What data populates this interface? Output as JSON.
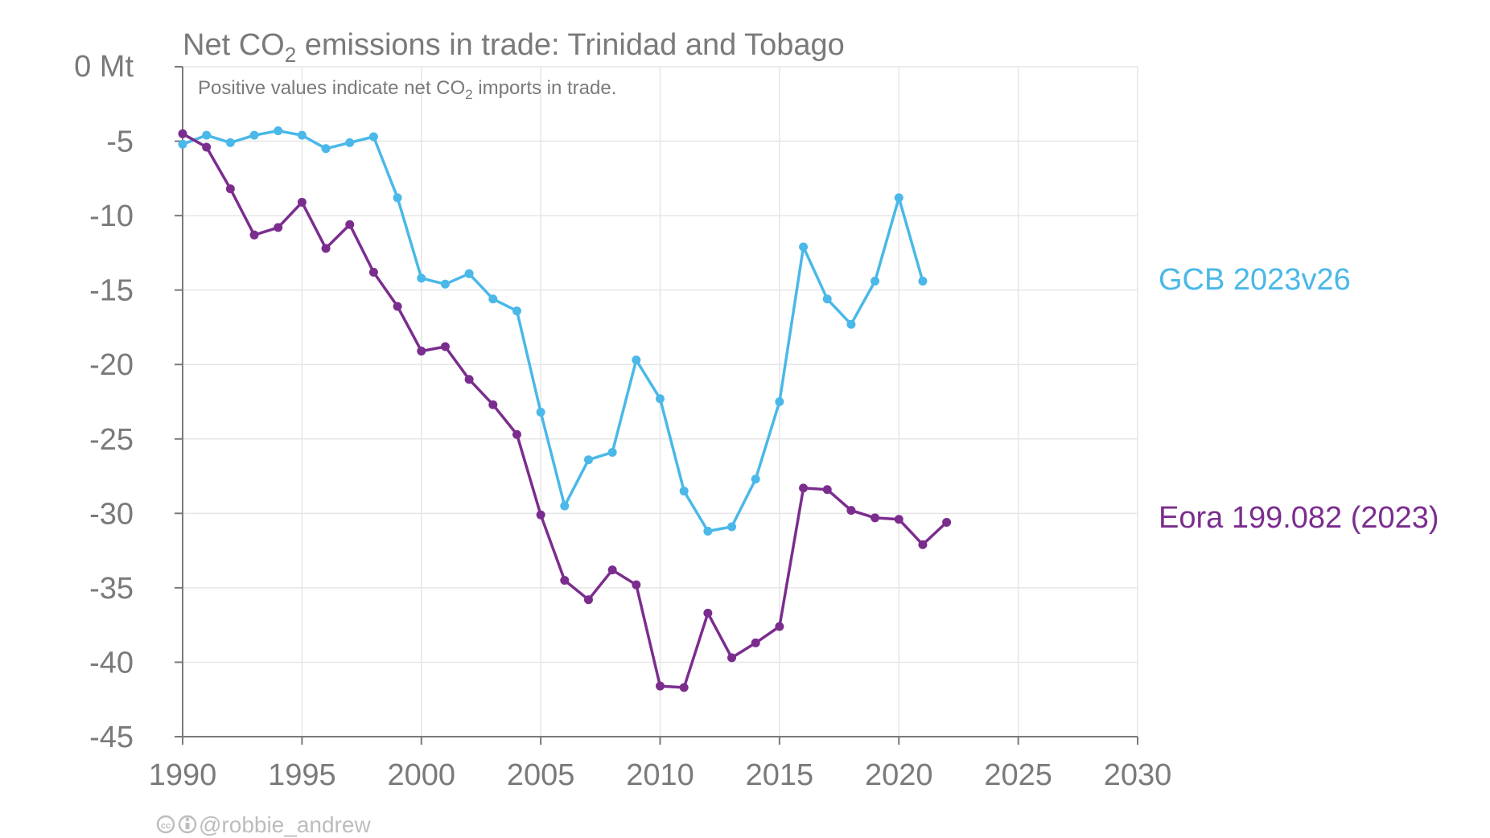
{
  "chart_data": {
    "type": "line",
    "title_parts": [
      "Net CO",
      "2",
      " emissions in trade: Trinidad and Tobago"
    ],
    "subtitle_parts": [
      "Positive values indicate net CO",
      "2",
      " imports in trade."
    ],
    "y_unit_label": "0 Mt",
    "y_tick_labels": [
      "-5",
      "-10",
      "-15",
      "-20",
      "-25",
      "-30",
      "-35",
      "-40",
      "-45"
    ],
    "x_tick_labels": [
      "1990",
      "1995",
      "2000",
      "2005",
      "2010",
      "2015",
      "2020",
      "2025",
      "2030"
    ],
    "xlim": [
      1990,
      2030
    ],
    "ylim": [
      -45,
      0
    ],
    "grid": true,
    "series": [
      {
        "name": "GCB 2023v26",
        "color": "#4ab8e8",
        "x": [
          1990,
          1991,
          1992,
          1993,
          1994,
          1995,
          1996,
          1997,
          1998,
          1999,
          2000,
          2001,
          2002,
          2003,
          2004,
          2005,
          2006,
          2007,
          2008,
          2009,
          2010,
          2011,
          2012,
          2013,
          2014,
          2015,
          2016,
          2017,
          2018,
          2019,
          2020,
          2021
        ],
        "values": [
          -5.2,
          -4.6,
          -5.1,
          -4.6,
          -4.3,
          -4.6,
          -5.5,
          -5.1,
          -4.7,
          -8.8,
          -14.2,
          -14.6,
          -13.9,
          -15.6,
          -16.4,
          -23.2,
          -29.5,
          -26.4,
          -25.9,
          -19.7,
          -22.3,
          -28.5,
          -31.2,
          -30.9,
          -27.7,
          -22.5,
          -12.1,
          -15.6,
          -17.3,
          -14.4,
          -8.8,
          -14.4
        ]
      },
      {
        "name": "Eora 199.082 (2023)",
        "color": "#7b2d8e",
        "x": [
          1990,
          1991,
          1992,
          1993,
          1994,
          1995,
          1996,
          1997,
          1998,
          1999,
          2000,
          2001,
          2002,
          2003,
          2004,
          2005,
          2006,
          2007,
          2008,
          2009,
          2010,
          2011,
          2012,
          2013,
          2014,
          2015,
          2016,
          2017,
          2018,
          2019,
          2020,
          2021,
          2022
        ],
        "values": [
          -4.5,
          -5.4,
          -8.2,
          -11.3,
          -10.8,
          -9.1,
          -12.2,
          -10.6,
          -13.8,
          -16.1,
          -19.1,
          -18.8,
          -21.0,
          -22.7,
          -24.7,
          -30.1,
          -34.5,
          -35.8,
          -33.8,
          -34.8,
          -41.6,
          -41.7,
          -36.7,
          -39.7,
          -38.7,
          -37.6,
          -28.3,
          -28.4,
          -29.8,
          -30.3,
          -30.4,
          -32.1,
          -30.6
        ]
      }
    ]
  },
  "credit": "@robbie_andrew",
  "colors": {
    "axis": "#7a7a7a",
    "grid": "#e6e6e6",
    "credit": "#bdbdbd"
  }
}
